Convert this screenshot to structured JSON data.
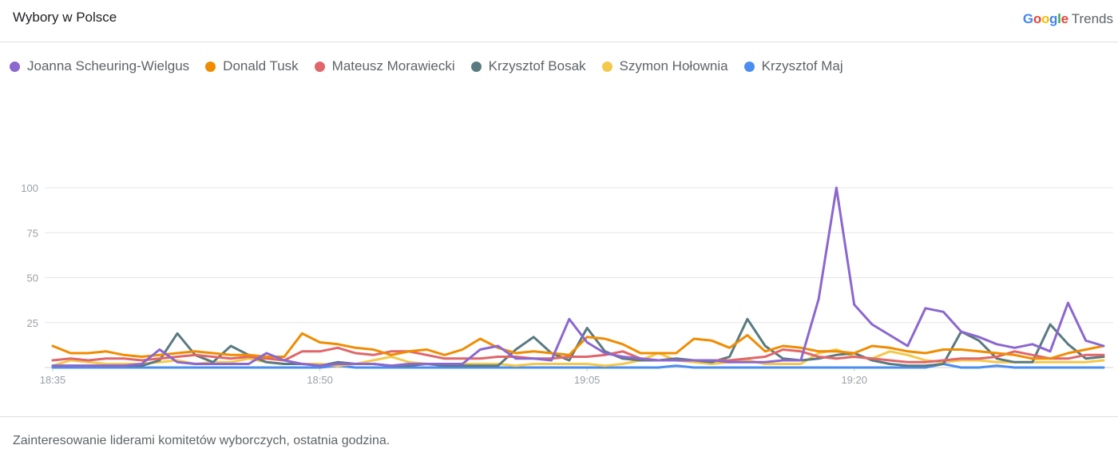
{
  "header": {
    "title": "Wybory w Polsce",
    "brand_google": "Google",
    "brand_trends": "Trends"
  },
  "footer": {
    "caption": "Zainteresowanie liderami komitetów wyborczych, ostatnia godzina."
  },
  "chart_data": {
    "type": "line",
    "title": "",
    "xlabel": "",
    "ylabel": "",
    "ylim": [
      0,
      100
    ],
    "yticks": [
      25,
      50,
      75,
      100
    ],
    "grid": true,
    "legend": "top-left",
    "x_tick_labels": [
      {
        "label": "18:35",
        "index": 0
      },
      {
        "label": "18:50",
        "index": 15
      },
      {
        "label": "19:05",
        "index": 30
      },
      {
        "label": "19:20",
        "index": 45
      }
    ],
    "series": [
      {
        "name": "Joanna Scheuring-Wielgus",
        "color": "#8b67cf",
        "values": [
          1,
          1,
          1,
          1,
          1,
          2,
          10,
          3,
          2,
          2,
          2,
          2,
          8,
          4,
          2,
          1,
          2,
          2,
          2,
          1,
          2,
          2,
          2,
          2,
          10,
          12,
          5,
          5,
          4,
          27,
          14,
          8,
          6,
          5,
          4,
          4,
          4,
          4,
          3,
          3,
          3,
          4,
          4,
          38,
          100,
          35,
          24,
          18,
          12,
          33,
          31,
          20,
          17,
          13,
          11,
          13,
          9,
          36,
          15,
          12
        ]
      },
      {
        "name": "Donald Tusk",
        "color": "#f08c00",
        "values": [
          12,
          8,
          8,
          9,
          7,
          6,
          7,
          8,
          9,
          8,
          7,
          7,
          6,
          6,
          19,
          14,
          13,
          11,
          10,
          7,
          9,
          10,
          7,
          10,
          16,
          11,
          8,
          9,
          8,
          7,
          17,
          16,
          13,
          8,
          8,
          8,
          16,
          15,
          11,
          18,
          9,
          12,
          11,
          9,
          9,
          8,
          12,
          11,
          9,
          8,
          10,
          10,
          9,
          8,
          7,
          5,
          5,
          8,
          10,
          12
        ]
      },
      {
        "name": "Mateusz Morawiecki",
        "color": "#e0666a",
        "values": [
          4,
          5,
          4,
          5,
          5,
          4,
          5,
          6,
          7,
          6,
          5,
          6,
          5,
          4,
          9,
          9,
          11,
          8,
          7,
          9,
          9,
          7,
          5,
          5,
          5,
          6,
          6,
          5,
          5,
          6,
          6,
          7,
          9,
          5,
          4,
          4,
          4,
          4,
          4,
          5,
          6,
          10,
          9,
          6,
          5,
          6,
          5,
          4,
          3,
          3,
          4,
          5,
          5,
          6,
          9,
          7,
          5,
          5,
          7,
          7
        ]
      },
      {
        "name": "Krzysztof Bosak",
        "color": "#5a7a82",
        "values": [
          1,
          1,
          1,
          1,
          1,
          1,
          4,
          19,
          7,
          3,
          12,
          7,
          3,
          2,
          2,
          1,
          3,
          2,
          2,
          1,
          1,
          2,
          1,
          1,
          1,
          1,
          10,
          17,
          8,
          4,
          22,
          9,
          5,
          4,
          4,
          5,
          4,
          3,
          6,
          27,
          12,
          5,
          4,
          5,
          7,
          8,
          4,
          2,
          1,
          1,
          2,
          20,
          15,
          5,
          3,
          3,
          24,
          13,
          5,
          6
        ]
      },
      {
        "name": "Szymon Hołownia",
        "color": "#f4c84a",
        "values": [
          1,
          4,
          3,
          2,
          2,
          2,
          3,
          4,
          2,
          3,
          3,
          5,
          3,
          2,
          2,
          2,
          1,
          2,
          4,
          6,
          3,
          2,
          2,
          2,
          2,
          2,
          1,
          2,
          2,
          2,
          2,
          1,
          2,
          4,
          8,
          4,
          3,
          2,
          3,
          4,
          2,
          2,
          2,
          8,
          10,
          6,
          5,
          9,
          7,
          4,
          3,
          4,
          4,
          3,
          3,
          3,
          3,
          3,
          3,
          4
        ]
      },
      {
        "name": "Krzysztof Maj",
        "color": "#4a8ef0",
        "values": [
          0,
          0,
          0,
          0,
          0,
          0,
          0,
          0,
          0,
          0,
          0,
          0,
          0,
          0,
          0,
          0,
          1,
          0,
          0,
          0,
          0,
          0,
          0,
          0,
          0,
          0,
          0,
          0,
          0,
          0,
          0,
          0,
          0,
          0,
          0,
          1,
          0,
          0,
          0,
          0,
          0,
          0,
          0,
          0,
          0,
          0,
          0,
          0,
          0,
          0,
          2,
          0,
          0,
          1,
          0,
          0,
          0,
          0,
          0,
          0
        ]
      }
    ]
  }
}
